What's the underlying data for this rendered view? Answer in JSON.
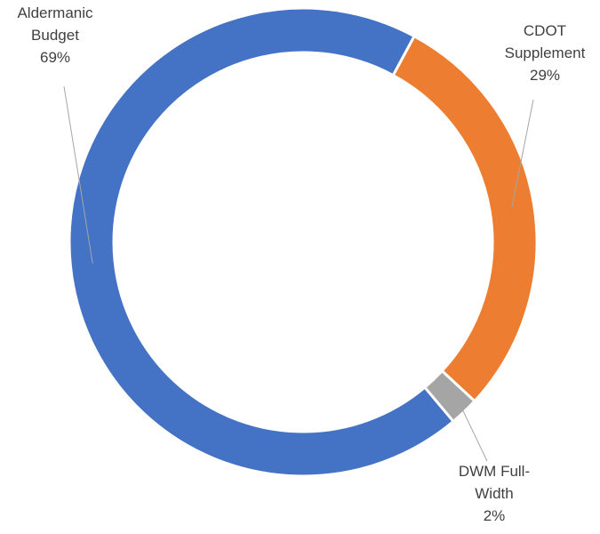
{
  "chart_data": {
    "type": "doughnut",
    "categories": [
      "Aldermanic Budget",
      "CDOT Supplement",
      "DWM Full-Width"
    ],
    "values": [
      69,
      29,
      2
    ],
    "value_labels": [
      "69%",
      "29%",
      "2%"
    ],
    "colors": [
      "#4472c4",
      "#ed7d31",
      "#a5a5a5"
    ]
  }
}
